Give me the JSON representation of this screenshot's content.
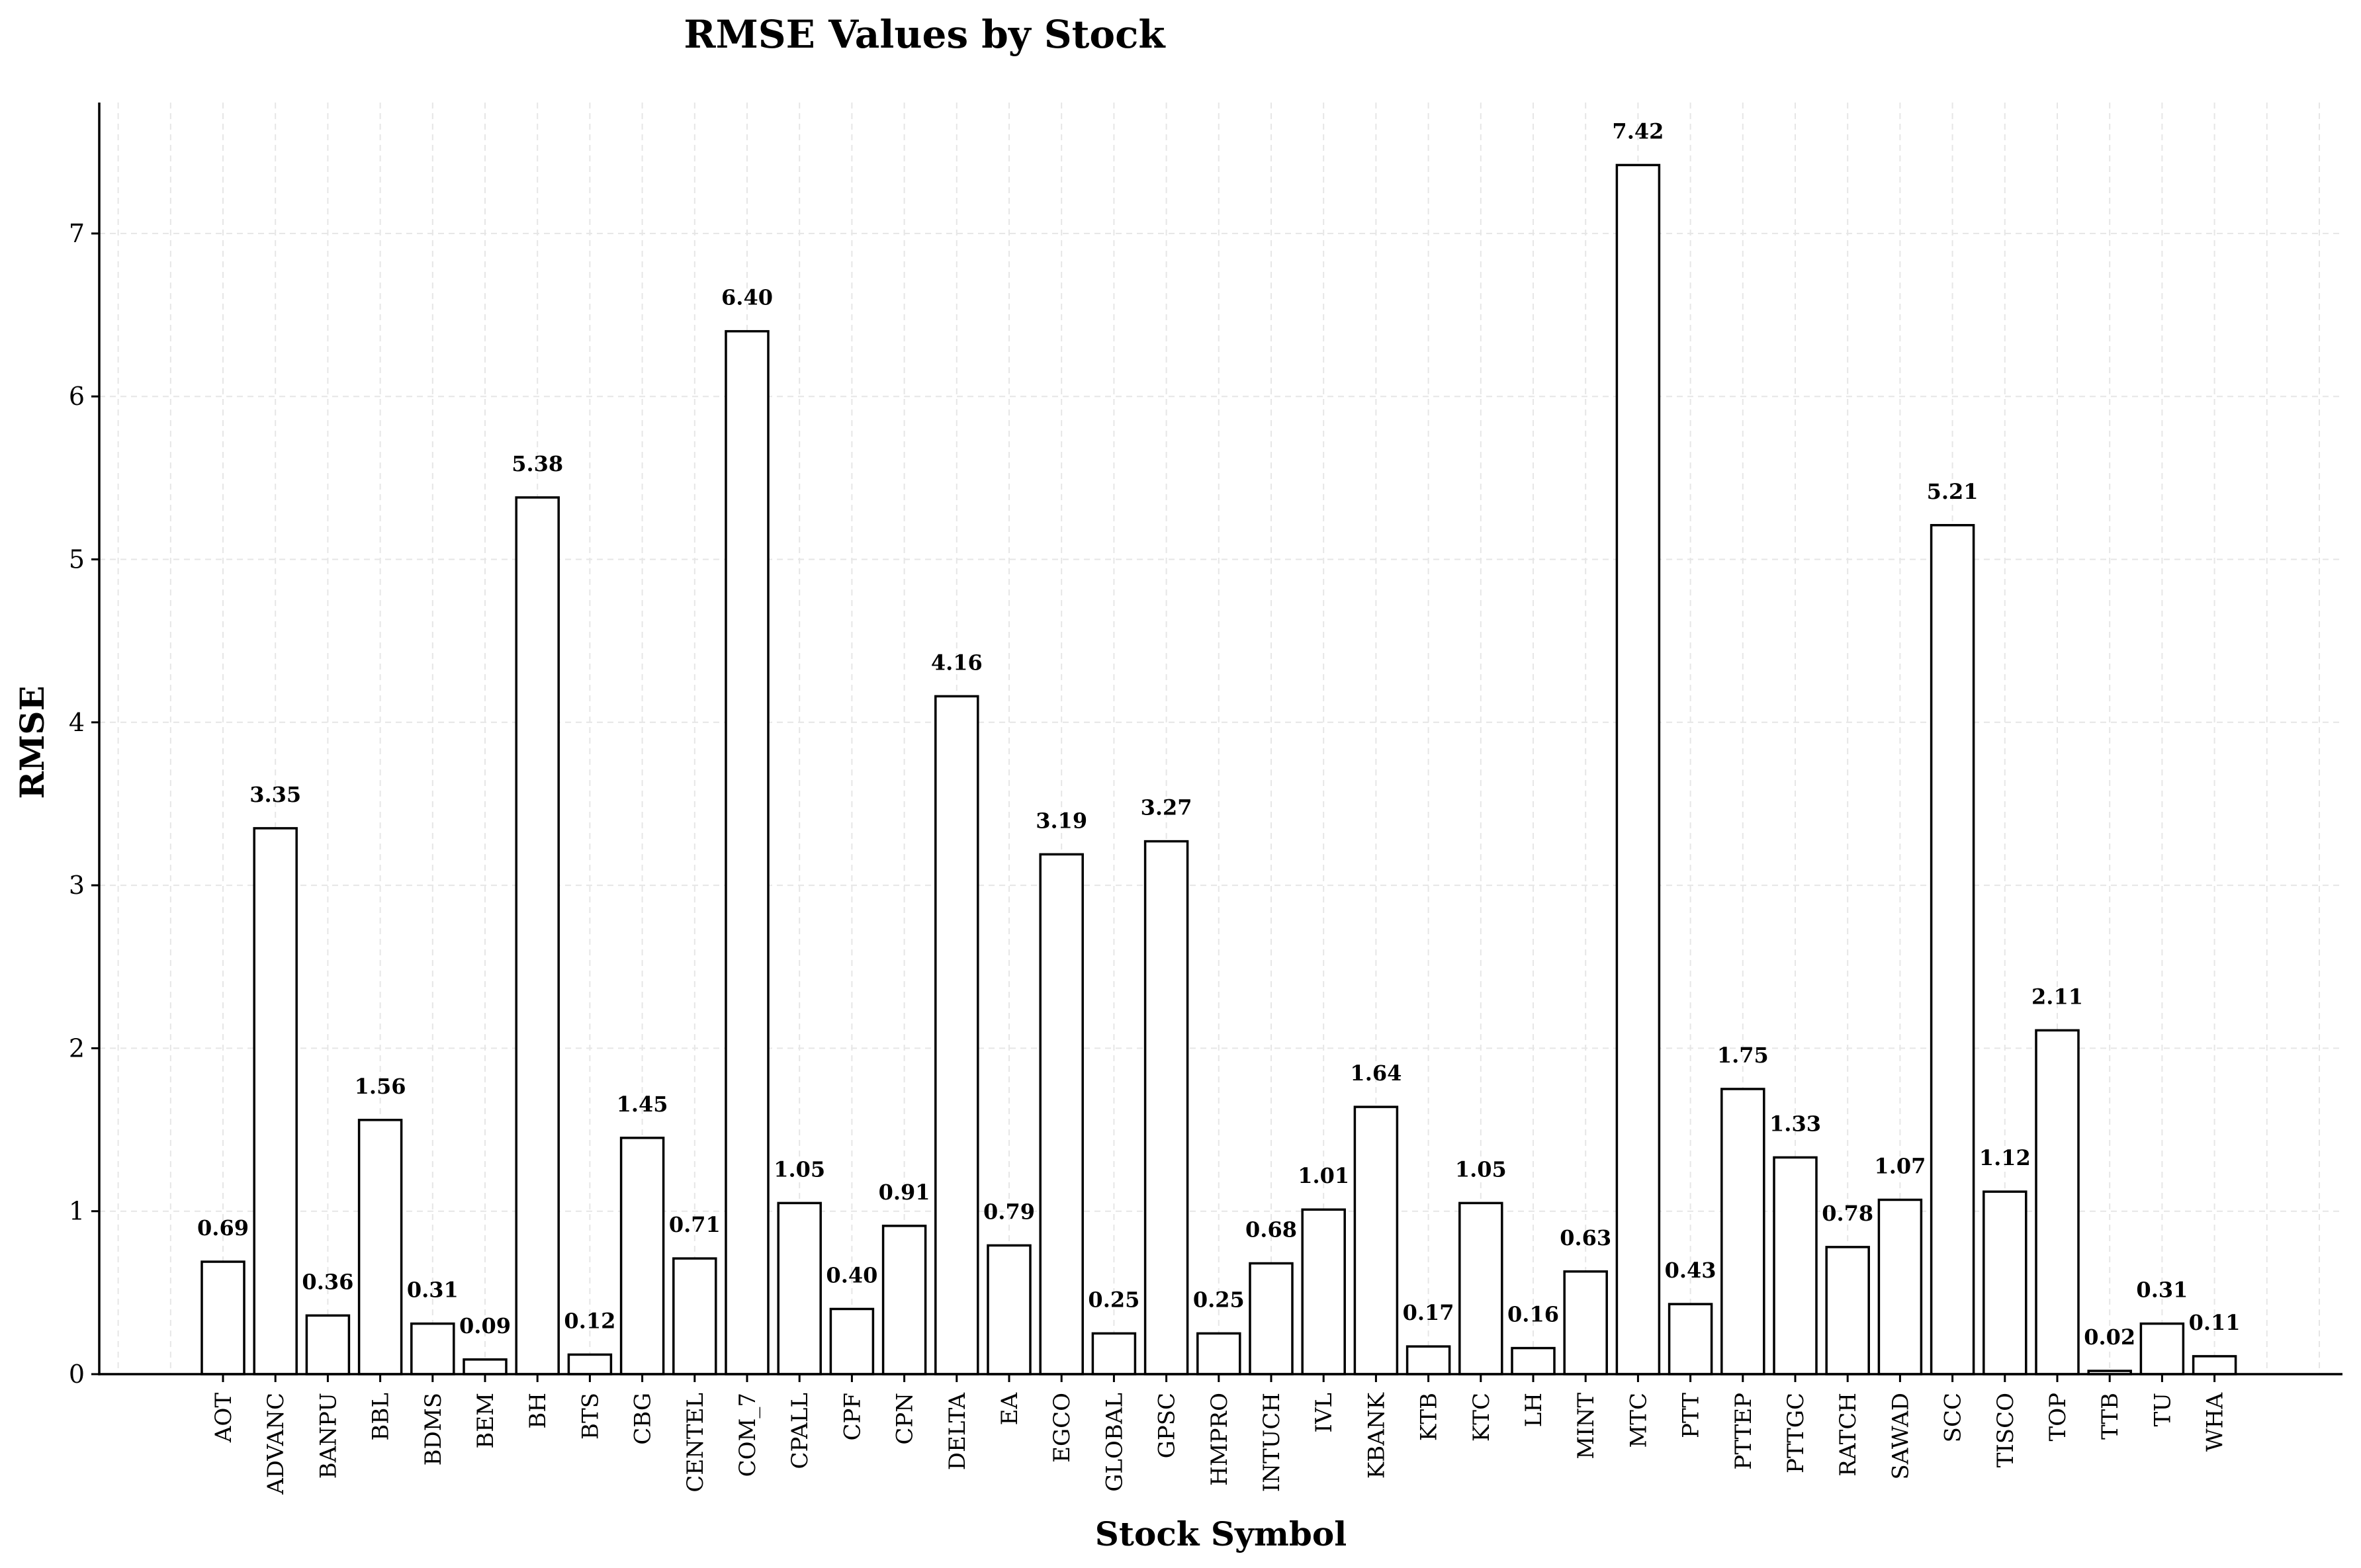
{
  "chart_data": {
    "type": "bar",
    "title": "RMSE Values by Stock",
    "xlabel": "Stock Symbol",
    "ylabel": "RMSE",
    "ylim": [
      0,
      7.8
    ],
    "yticks": [
      0,
      1,
      2,
      3,
      4,
      5,
      6,
      7
    ],
    "grid": true,
    "legend": "none",
    "bar_fill": "#ffffff",
    "bar_edge": "#000000",
    "categories": [
      "AOT",
      "ADVANC",
      "BANPU",
      "BBL",
      "BDMS",
      "BEM",
      "BH",
      "BTS",
      "CBG",
      "CENTEL",
      "COM_7",
      "CPALL",
      "CPF",
      "CPN",
      "DELTA",
      "EA",
      "EGCO",
      "GLOBAL",
      "GPSC",
      "HMPRO",
      "INTUCH",
      "IVL",
      "KBANK",
      "KTB",
      "KTC",
      "LH",
      "MINT",
      "MTC",
      "PTT",
      "PTTEP",
      "PTTGC",
      "RATCH",
      "SAWAD",
      "SCC",
      "TISCO",
      "TOP",
      "TTB",
      "TU",
      "WHA"
    ],
    "values": [
      0.69,
      3.35,
      0.36,
      1.56,
      0.31,
      0.09,
      5.38,
      0.12,
      1.45,
      0.71,
      6.4,
      1.05,
      0.4,
      0.91,
      4.16,
      0.79,
      3.19,
      0.25,
      3.27,
      0.25,
      0.68,
      1.01,
      1.64,
      0.17,
      1.05,
      0.16,
      0.63,
      7.42,
      0.43,
      1.75,
      1.33,
      0.78,
      1.07,
      5.21,
      1.12,
      2.11,
      0.02,
      0.31,
      0.11
    ],
    "data_labels": [
      "0.69",
      "3.35",
      "0.36",
      "1.56",
      "0.31",
      "0.09",
      "5.38",
      "0.12",
      "1.45",
      "0.71",
      "6.40",
      "1.05",
      "0.40",
      "0.91",
      "4.16",
      "0.79",
      "3.19",
      "0.25",
      "3.27",
      "0.25",
      "0.68",
      "1.01",
      "1.64",
      "0.17",
      "1.05",
      "0.16",
      "0.63",
      "7.42",
      "0.43",
      "1.75",
      "1.33",
      "0.78",
      "1.07",
      "5.21",
      "1.12",
      "2.11",
      "0.02",
      "0.31",
      "0.11"
    ]
  }
}
